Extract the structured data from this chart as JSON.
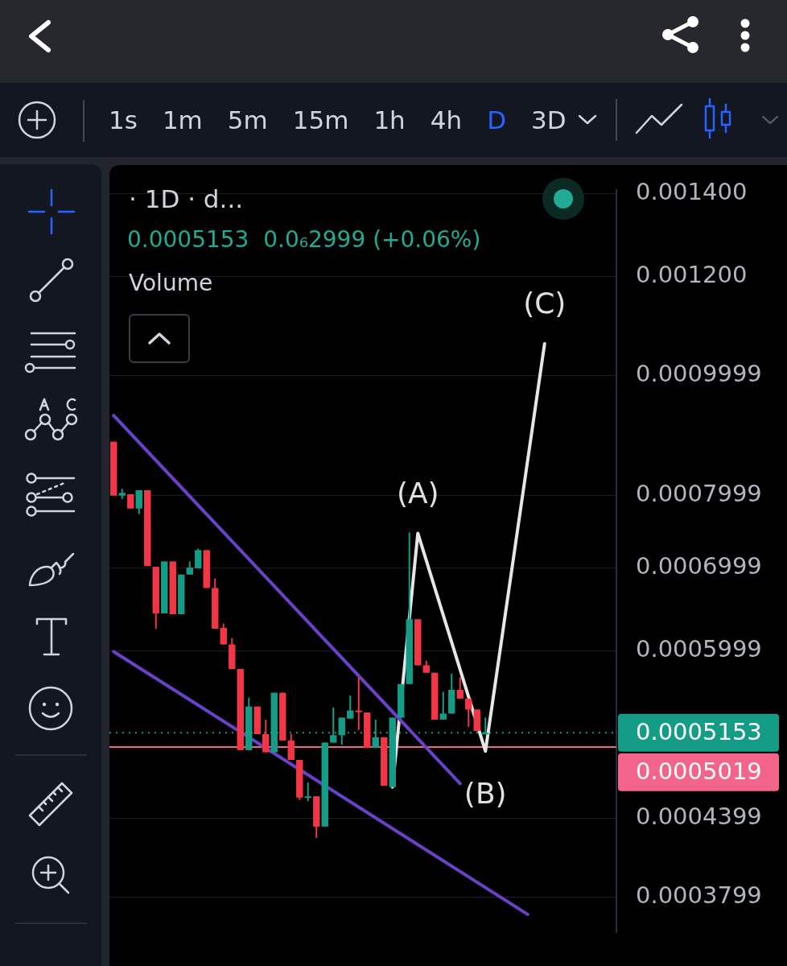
{
  "chart_data": {
    "type": "candlestick",
    "title": "· 1D · d...",
    "subtitle": "0.0005153  0.0₆2999 (+0.06%)",
    "categories": [
      null,
      null,
      null,
      null,
      null,
      null,
      null,
      null,
      null,
      null,
      null,
      null,
      null,
      null,
      null,
      null,
      null,
      null,
      null,
      null,
      null,
      null,
      null,
      null,
      null,
      null,
      null,
      null,
      null,
      null,
      null,
      null,
      null,
      null,
      null,
      null,
      null,
      null,
      null,
      null,
      null,
      null,
      null,
      null,
      null,
      null,
      null,
      null,
      null,
      null,
      null,
      null,
      null,
      null,
      null,
      null,
      null,
      null,
      null,
      null
    ],
    "ohlc": [
      [
        0.000884,
        0.000884,
        0.0008,
        0.0008
      ],
      [
        0.0008,
        0.00081,
        0.000795,
        0.000804
      ],
      [
        0.000802,
        0.000802,
        0.000781,
        0.000781
      ],
      [
        0.000781,
        0.000808,
        0.000773,
        0.000808
      ],
      [
        0.000808,
        0.000808,
        0.000702,
        0.000702
      ],
      [
        0.000701,
        0.000701,
        0.000625,
        0.000643
      ],
      [
        0.000643,
        0.000708,
        0.000643,
        0.000708
      ],
      [
        0.000708,
        0.000708,
        0.000642,
        0.000642
      ],
      [
        0.000642,
        0.000691,
        0.000642,
        0.000691
      ],
      [
        0.000691,
        0.000708,
        0.000691,
        0.0007
      ],
      [
        0.000699,
        0.000725,
        0.000699,
        0.000723
      ],
      [
        0.000723,
        0.000723,
        0.000674,
        0.000674
      ],
      [
        0.000674,
        0.000686,
        0.000625,
        0.000625
      ],
      [
        0.000626,
        0.000631,
        0.000607,
        0.000607
      ],
      [
        0.000607,
        0.000614,
        0.00058,
        0.00058
      ],
      [
        0.00058,
        0.00058,
        0.000499,
        0.000499
      ],
      [
        0.000499,
        0.00055,
        0.000499,
        0.000541
      ],
      [
        0.000541,
        0.000541,
        0.000514,
        0.000514
      ],
      [
        0.000514,
        0.000528,
        0.000497,
        0.000497
      ],
      [
        0.000497,
        0.000555,
        0.000497,
        0.000555
      ],
      [
        0.000555,
        0.000555,
        0.000508,
        0.000508
      ],
      [
        0.000508,
        0.000514,
        0.00049,
        0.00049
      ],
      [
        0.00049,
        0.00049,
        0.000455,
        0.000457
      ],
      [
        0.000457,
        0.00047,
        0.000454,
        0.000458
      ],
      [
        0.000458,
        0.000458,
        0.000424,
        0.000433
      ],
      [
        0.000433,
        0.000506,
        0.000433,
        0.000506
      ],
      [
        0.000506,
        0.00054,
        0.000506,
        0.000513
      ],
      [
        0.000513,
        0.00053,
        0.000504,
        0.00053
      ],
      [
        0.000529,
        0.000552,
        0.000529,
        0.000537
      ],
      [
        0.000537,
        0.000571,
        0.000518,
        0.000536
      ],
      [
        0.000535,
        0.000535,
        0.000501,
        0.000501
      ],
      [
        0.000501,
        0.000528,
        0.000501,
        0.000511
      ],
      [
        0.000511,
        0.000511,
        0.000467,
        0.000467
      ],
      [
        0.000466,
        0.00053,
        0.000466,
        0.00053
      ],
      [
        0.00053,
        0.000564,
        0.00053,
        0.000564
      ],
      [
        0.000564,
        0.000747,
        0.000564,
        0.000636
      ],
      [
        0.000636,
        0.000636,
        0.000584,
        0.000584
      ],
      [
        0.000584,
        0.000589,
        0.000576,
        0.000576
      ],
      [
        0.000576,
        0.000576,
        0.000528,
        0.000528
      ],
      [
        0.000528,
        0.000556,
        0.000528,
        0.000534
      ],
      [
        0.000534,
        0.000575,
        0.000534,
        0.000558
      ],
      [
        0.000558,
        0.000571,
        0.000549,
        0.000549
      ],
      [
        0.000549,
        0.000549,
        0.000521,
        0.000538
      ],
      [
        0.000538,
        0.000538,
        0.000517,
        0.000517
      ],
      [
        0.000515,
        0.00053,
        0.0005146,
        0.0005153
      ],
      null,
      null,
      null,
      null,
      null,
      null,
      null,
      null,
      null,
      null,
      null,
      null,
      null,
      null,
      null
    ],
    "colors": [
      "#f23645",
      "#149c86",
      "#f23645",
      "#149c86",
      "#f23645",
      "#f23645",
      "#149c86",
      "#f23645",
      "#149c86",
      "#149c86",
      "#149c86",
      "#f23645",
      "#f23645",
      "#f23645",
      "#f23645",
      "#f23645",
      "#149c86",
      "#f23645",
      "#f23645",
      "#149c86",
      "#f23645",
      "#f23645",
      "#f23645",
      "#149c86",
      "#f23645",
      "#149c86",
      "#149c86",
      "#149c86",
      "#149c86",
      "#f23645",
      "#f23645",
      "#149c86",
      "#f23645",
      "#149c86",
      "#149c86",
      "#149c86",
      "#f23645",
      "#f23645",
      "#f23645",
      "#149c86",
      "#149c86",
      "#f23645",
      "#f23645",
      "#f23645",
      "#149c86",
      null,
      null,
      null,
      null,
      null,
      null,
      null,
      null,
      null,
      null,
      null,
      null,
      null,
      null,
      null
    ],
    "series": [
      {
        "type": "line",
        "color": "#6a41c9",
        "values": [
          0.000928,
          null,
          null,
          null,
          null,
          null,
          null,
          null,
          null,
          null,
          null,
          null,
          null,
          null,
          null,
          null,
          null,
          null,
          null,
          null,
          null,
          null,
          null,
          null,
          null,
          null,
          null,
          null,
          null,
          null,
          null,
          null,
          null,
          null,
          null,
          null,
          null,
          null,
          null,
          null,
          null,
          0.000469,
          null,
          null,
          null,
          null,
          null,
          null,
          null,
          null,
          null,
          null,
          null,
          null,
          null,
          null,
          null,
          null,
          null,
          null
        ]
      },
      {
        "type": "line",
        "color": "#6a41c9",
        "values": [
          0.000599,
          null,
          null,
          null,
          null,
          null,
          null,
          null,
          null,
          null,
          null,
          null,
          null,
          null,
          null,
          null,
          null,
          null,
          null,
          null,
          null,
          null,
          null,
          null,
          null,
          null,
          null,
          null,
          null,
          null,
          null,
          null,
          null,
          null,
          null,
          null,
          null,
          null,
          null,
          null,
          null,
          null,
          null,
          null,
          null,
          null,
          null,
          null,
          null,
          0.000368,
          null,
          null,
          null,
          null,
          null,
          null,
          null,
          null,
          null,
          null
        ]
      },
      {
        "type": "line",
        "color": "#e6e6e6",
        "values": [
          null,
          null,
          null,
          null,
          null,
          null,
          null,
          null,
          null,
          null,
          null,
          null,
          null,
          null,
          null,
          null,
          null,
          null,
          null,
          null,
          null,
          null,
          null,
          null,
          null,
          null,
          null,
          null,
          null,
          null,
          null,
          null,
          null,
          0.000466,
          null,
          null,
          0.000746,
          null,
          null,
          null,
          null,
          null,
          null,
          null,
          0.000498,
          null,
          null,
          null,
          null,
          null,
          null,
          0.00106,
          null,
          null,
          null,
          null,
          null,
          null,
          null,
          null
        ]
      }
    ],
    "ylim": [
      0.0003557,
      0.001409
    ],
    "yticks": [
      0.0003799,
      0.0004399,
      0.0005999,
      0.0006999,
      0.0007999,
      0.0009999,
      {
        "value": 0.0012,
        "label": "0.001200"
      },
      {
        "value": 0.0014,
        "label": "0.001400"
      }
    ],
    "log": true,
    "grid": "y",
    "tick_labels": "y",
    "legend": false,
    "marker": "none",
    "ref_lines": [
      {
        "axis": "y",
        "value": 0.0005153,
        "label": "0.0005153",
        "color": "#149c86",
        "line_style": "dotted"
      },
      {
        "axis": "y",
        "value": 0.0005019,
        "label": "0.0005019",
        "color": "#f2648a",
        "line_style": "solid"
      }
    ],
    "annotations": [
      "1s",
      "1m",
      "5m",
      "15m",
      "1h",
      "4h",
      "D",
      "3D",
      "Volume",
      {
        "text": "(A)",
        "y": 0.000746
      },
      {
        "text": "(B)",
        "y": 0.000498
      },
      {
        "text": "(C)",
        "y": 0.00106
      }
    ]
  }
}
